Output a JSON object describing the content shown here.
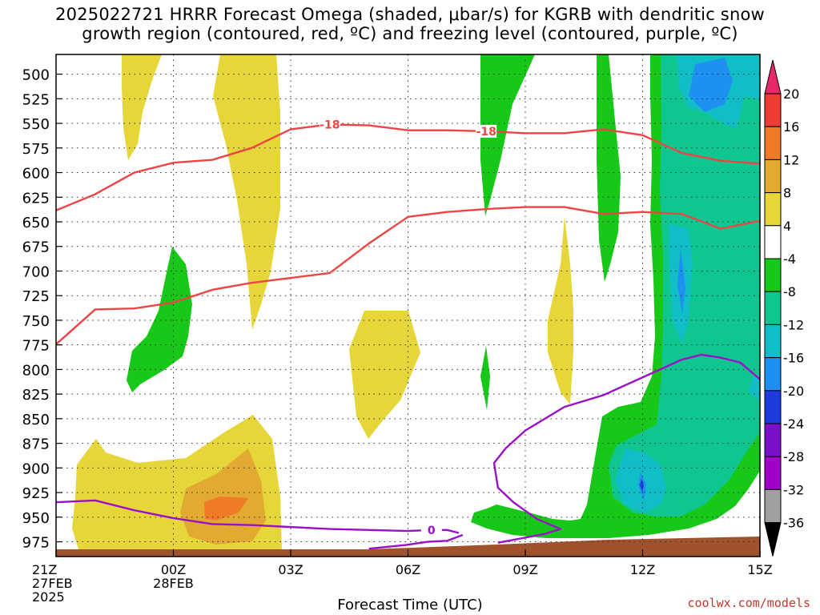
{
  "title": {
    "line1": "2025022721 HRRR Forecast Omega (shaded, μbar/s) for KGRB with dendritic snow",
    "line2": "growth region (contoured, red, ºC) and freezing level (contoured, purple, ºC)"
  },
  "credit": "coolwx.com/models",
  "chart_data": {
    "type": "time-height cross section",
    "title": "2025022721 HRRR Forecast Omega (shaded, μbar/s) for KGRB with dendritic snow growth region (contoured, red, ºC) and freezing level (contoured, purple, ºC)",
    "xlabel": "Forecast Time (UTC)",
    "ylabel": "",
    "x_ticks": [
      {
        "hour": 0,
        "label": [
          "21Z",
          "27FEB",
          "2025"
        ]
      },
      {
        "hour": 3,
        "label": [
          "00Z",
          "28FEB"
        ]
      },
      {
        "hour": 6,
        "label": [
          "03Z"
        ]
      },
      {
        "hour": 9,
        "label": [
          "06Z"
        ]
      },
      {
        "hour": 12,
        "label": [
          "09Z"
        ]
      },
      {
        "hour": 15,
        "label": [
          "12Z"
        ]
      },
      {
        "hour": 18,
        "label": [
          "15Z"
        ]
      }
    ],
    "xlim": [
      0,
      18
    ],
    "ylim": [
      990,
      480
    ],
    "y_ticks": [
      500,
      525,
      550,
      575,
      600,
      625,
      650,
      675,
      700,
      725,
      750,
      775,
      800,
      825,
      850,
      875,
      900,
      925,
      950,
      975
    ],
    "grid": "dotted",
    "colorbar": {
      "levels": [
        20,
        16,
        12,
        8,
        4,
        -4,
        -8,
        -12,
        -16,
        -20,
        -24,
        -28,
        -32,
        -36
      ],
      "colors": [
        "#e8286a",
        "#ef3b36",
        "#ef7a28",
        "#e2aa30",
        "#e6d63a",
        "#ffffff",
        "#18c818",
        "#10c690",
        "#10bec8",
        "#1e90f0",
        "#1e3cdc",
        "#7a10c8",
        "#a000c8",
        "#a0a0a0",
        "#000000"
      ]
    },
    "contours": [
      {
        "name": "-18",
        "color": "#ee4444",
        "label": "-18",
        "points": [
          [
            -0.1,
            640
          ],
          [
            1,
            622
          ],
          [
            2,
            600
          ],
          [
            3,
            590
          ],
          [
            4,
            587
          ],
          [
            5,
            575
          ],
          [
            6,
            556
          ],
          [
            7,
            551
          ],
          [
            8,
            552
          ],
          [
            9,
            557
          ],
          [
            10,
            557
          ],
          [
            11,
            558
          ],
          [
            12,
            560
          ],
          [
            13,
            560
          ],
          [
            14,
            556
          ],
          [
            15,
            562
          ],
          [
            16,
            580
          ],
          [
            17,
            588
          ],
          [
            18,
            591
          ]
        ]
      },
      {
        "name": "-12",
        "color": "#ee4444",
        "label": "",
        "points": [
          [
            -0.1,
            778
          ],
          [
            1,
            739
          ],
          [
            2,
            738
          ],
          [
            3,
            732
          ],
          [
            4,
            719
          ],
          [
            5,
            712
          ],
          [
            6,
            707
          ],
          [
            7,
            702
          ],
          [
            8,
            672
          ],
          [
            9,
            645
          ],
          [
            10,
            640
          ],
          [
            11,
            637
          ],
          [
            12,
            635
          ],
          [
            13,
            635
          ],
          [
            14,
            642
          ],
          [
            15,
            640
          ],
          [
            16,
            642
          ],
          [
            17,
            657
          ],
          [
            18,
            649
          ]
        ]
      },
      {
        "name": "0",
        "color": "#9a10c8",
        "label": "0",
        "points": [
          [
            -0.1,
            935
          ],
          [
            1,
            933
          ],
          [
            2,
            943
          ],
          [
            3,
            951
          ],
          [
            4,
            957
          ],
          [
            5,
            958
          ],
          [
            6,
            960
          ],
          [
            7,
            962
          ],
          [
            8,
            963
          ],
          [
            9,
            964
          ],
          [
            9.6,
            963
          ],
          [
            10,
            963
          ],
          [
            10.3,
            966
          ]
        ]
      },
      {
        "name": "0",
        "color": "#9a10c8",
        "label": "",
        "points": [
          [
            8,
            982
          ],
          [
            9,
            978
          ],
          [
            9.5,
            975
          ],
          [
            10,
            974
          ],
          [
            10.4,
            968
          ]
        ]
      },
      {
        "name": "0",
        "color": "#9a10c8",
        "label": "",
        "points": [
          [
            11.3,
            976
          ],
          [
            12.5,
            967
          ],
          [
            12.9,
            962
          ],
          [
            12.3,
            952
          ],
          [
            11.7,
            935
          ],
          [
            11.3,
            920
          ],
          [
            11.2,
            895
          ],
          [
            11.5,
            880
          ],
          [
            12,
            862
          ],
          [
            13,
            838
          ],
          [
            14,
            826
          ],
          [
            15,
            808
          ],
          [
            16,
            790
          ],
          [
            16.5,
            785
          ],
          [
            17,
            788
          ],
          [
            17.5,
            793
          ],
          [
            18,
            810
          ]
        ]
      }
    ]
  }
}
